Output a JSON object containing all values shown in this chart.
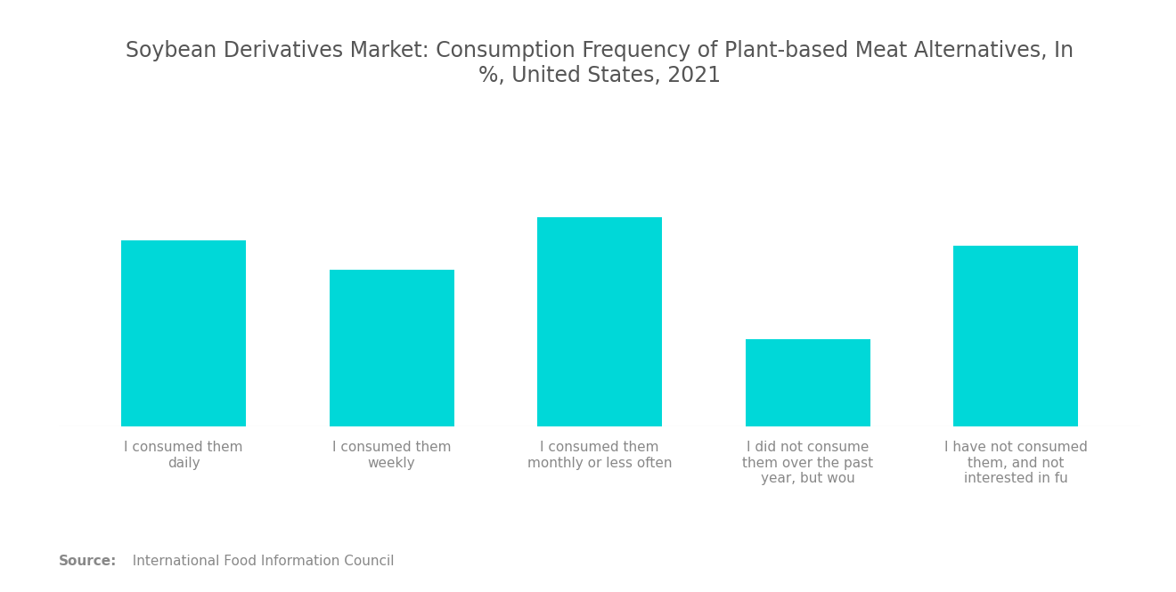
{
  "title": "Soybean Derivatives Market: Consumption Frequency of Plant-based Meat Alternatives, In\n%, United States, 2021",
  "categories": [
    "I consumed them\ndaily",
    "I consumed them\nweekly",
    "I consumed them\nmonthly or less often",
    "I did not consume\nthem over the past\nyear, but wou",
    "I have not consumed\nthem, and not\ninterested in fu"
  ],
  "values": [
    32,
    27,
    36,
    15,
    31
  ],
  "bar_color": "#00D8D8",
  "background_color": "#FFFFFF",
  "source_bold": "Source:",
  "source_normal": "  International Food Information Council",
  "title_fontsize": 17,
  "label_fontsize": 11,
  "source_fontsize": 11,
  "ylim": [
    0,
    55
  ]
}
